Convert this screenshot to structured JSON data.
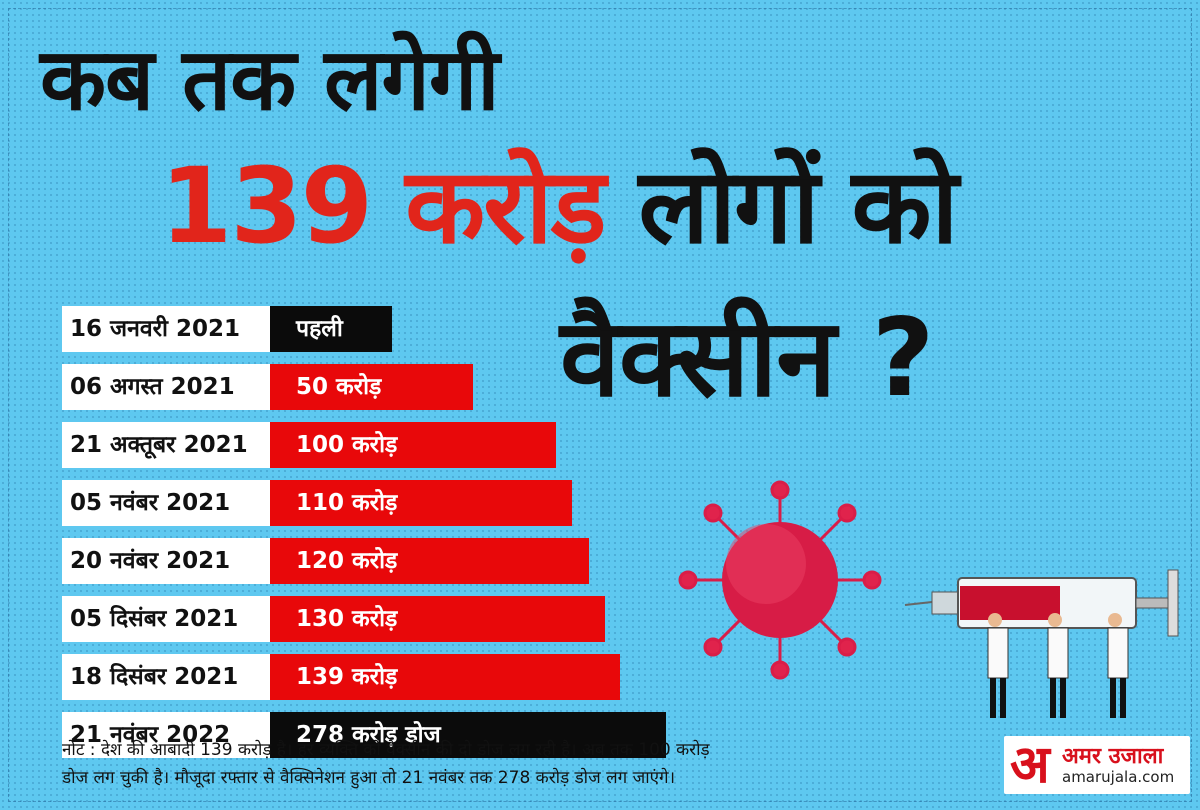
{
  "headline": {
    "line1": "कब तक लगेगी",
    "line2_highlight": "139 करोड़",
    "line2_rest": "लोगों को",
    "line3": "वैक्सीन ?"
  },
  "chart_data": {
    "type": "bar",
    "orientation": "horizontal",
    "unit": "करोड़",
    "rows": [
      {
        "date": "16 जनवरी 2021",
        "label": "पहली",
        "value": 0,
        "style": "dark"
      },
      {
        "date": "06 अगस्त 2021",
        "label": "50 करोड़",
        "value": 50,
        "style": "red"
      },
      {
        "date": "21 अक्तूबर 2021",
        "label": "100 करोड़",
        "value": 100,
        "style": "red"
      },
      {
        "date": "05 नवंबर 2021",
        "label": "110 करोड़",
        "value": 110,
        "style": "red"
      },
      {
        "date": "20 नवंबर 2021",
        "label": "120 करोड़",
        "value": 120,
        "style": "red"
      },
      {
        "date": "05 दिसंबर 2021",
        "label": "130 करोड़",
        "value": 130,
        "style": "red"
      },
      {
        "date": "18 दिसंबर 2021",
        "label": "139 करोड़",
        "value": 139,
        "style": "red"
      },
      {
        "date": "21 नवंबर 2022",
        "label": "278 करोड़ डोज",
        "value": 278,
        "style": "dark"
      }
    ]
  },
  "note": {
    "line1": "नोट : देश की आबादी 139 करोड़ है। हर व्यक्ति को वैक्सीन की दो डोज लग रही है। अब तक 100 करोड़",
    "line2": "डोज लग चुकी है। मौजूदा रफ्तार से वैक्सिनेशन हुआ तो 21 नवंबर तक 278 करोड़ डोज लग जाएंगे।"
  },
  "logo": {
    "mark": "अ",
    "name": "अमर उजाला",
    "site": "amarujala.com"
  },
  "colors": {
    "background": "#5ec8f0",
    "accent_red": "#e8080a",
    "dark": "#0b0b0b",
    "virus": "#e0234c"
  },
  "illustration": {
    "virus": "coronavirus-icon",
    "syringe": "syringe-icon",
    "people": "people-carrying-syringe-icon"
  }
}
